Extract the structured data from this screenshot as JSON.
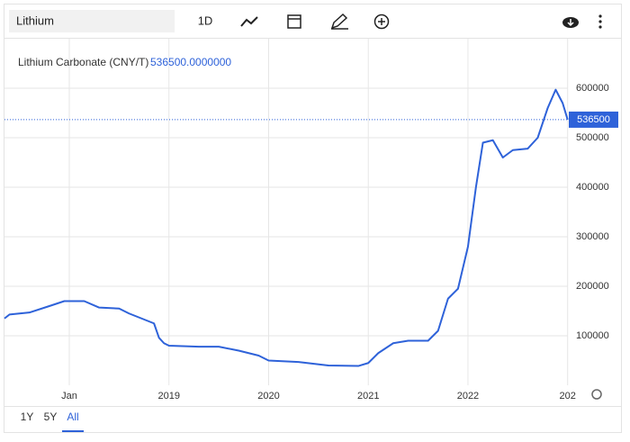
{
  "toolbar": {
    "search": "Lithium",
    "interval": "1D"
  },
  "ranges": [
    "1Y",
    "5Y",
    "All"
  ],
  "chart_data": {
    "type": "line",
    "title": "Lithium Carbonate (CNY/T)",
    "last_price": 536500,
    "last_price_label": "536500.0000000",
    "x": [
      2017.35,
      2017.4,
      2017.6,
      2017.8,
      2017.95,
      2018.15,
      2018.3,
      2018.5,
      2018.6,
      2018.85,
      2018.9,
      2018.95,
      2019.0,
      2019.3,
      2019.5,
      2019.7,
      2019.9,
      2020.0,
      2020.3,
      2020.6,
      2020.9,
      2021.0,
      2021.1,
      2021.25,
      2021.4,
      2021.6,
      2021.7,
      2021.8,
      2021.9,
      2022.0,
      2022.08,
      2022.15,
      2022.25,
      2022.35,
      2022.45,
      2022.6,
      2022.7,
      2022.8,
      2022.88,
      2022.95,
      2023.0
    ],
    "series": [
      {
        "name": "Lithium Carbonate (CNY/T)",
        "color": "#2e62d9",
        "values": [
          135000,
          143000,
          147000,
          160000,
          170000,
          170000,
          157000,
          155000,
          145000,
          125000,
          96000,
          85000,
          80000,
          78000,
          78000,
          70000,
          60000,
          50000,
          47000,
          40000,
          39000,
          45000,
          65000,
          85000,
          90000,
          90000,
          110000,
          175000,
          195000,
          280000,
          400000,
          490000,
          495000,
          460000,
          475000,
          478000,
          500000,
          560000,
          597000,
          570000,
          536500
        ]
      }
    ],
    "xlim": [
      2017.35,
      2023.0
    ],
    "xticks": [
      {
        "value": 2018,
        "label": "Jan"
      },
      2019,
      2020,
      2021,
      2022,
      {
        "value": 2023,
        "label": "202"
      }
    ],
    "ylim": [
      0,
      700000
    ],
    "yticks": [
      100000,
      200000,
      300000,
      400000,
      500000,
      600000
    ],
    "grid": true
  }
}
